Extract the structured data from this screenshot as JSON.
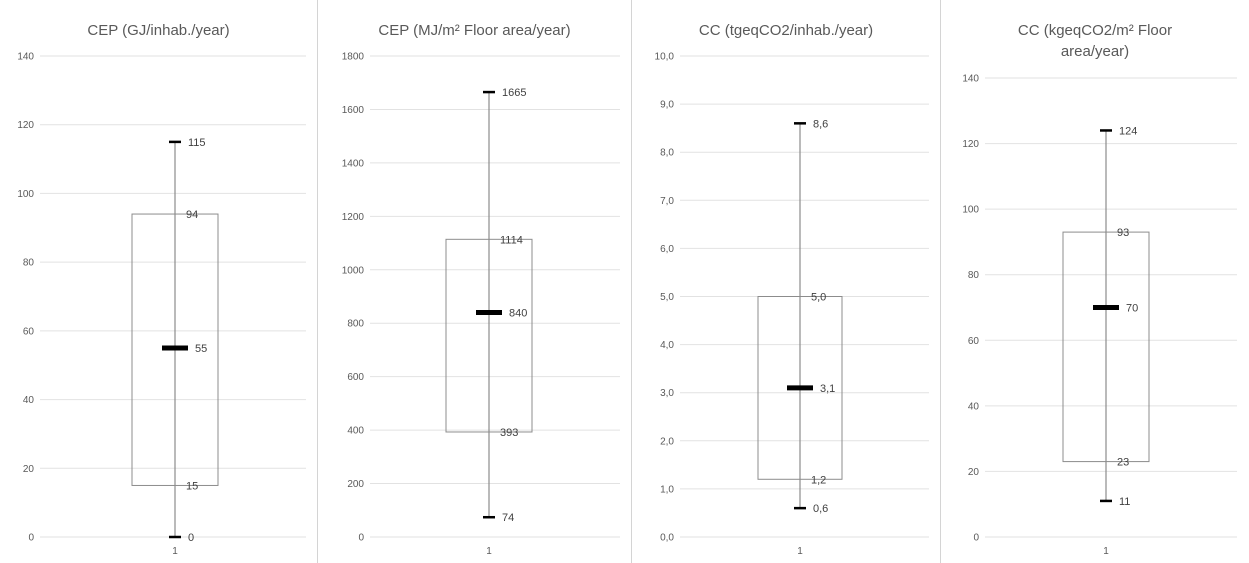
{
  "chart_data": [
    {
      "type": "boxplot",
      "title": "CEP  (GJ/inhab./year)",
      "categories": [
        "1"
      ],
      "ylim": [
        0,
        140
      ],
      "yticks": [
        "0",
        "20",
        "40",
        "60",
        "80",
        "100",
        "120",
        "140"
      ],
      "grid": true,
      "values": {
        "min": 0,
        "q1": 15,
        "median": 55,
        "q3": 94,
        "max": 115
      },
      "labels": {
        "min": "0",
        "q1": "15",
        "median": "55",
        "q3": "94",
        "max": "115"
      }
    },
    {
      "type": "boxplot",
      "title": "CEP  (MJ/m² Floor area/year)",
      "categories": [
        "1"
      ],
      "ylim": [
        0,
        1800
      ],
      "yticks": [
        "0",
        "200",
        "400",
        "600",
        "800",
        "1000",
        "1200",
        "1400",
        "1600",
        "1800"
      ],
      "grid": true,
      "values": {
        "min": 74,
        "q1": 393,
        "median": 840,
        "q3": 1114,
        "max": 1665
      },
      "labels": {
        "min": "74",
        "q1": "393",
        "median": "840",
        "q3": "1114",
        "max": "1665"
      }
    },
    {
      "type": "boxplot",
      "title": "CC (tgeqCO2/inhab./year)",
      "categories": [
        "1"
      ],
      "ylim": [
        0,
        10
      ],
      "yticks": [
        "0,0",
        "1,0",
        "2,0",
        "3,0",
        "4,0",
        "5,0",
        "6,0",
        "7,0",
        "8,0",
        "9,0",
        "10,0"
      ],
      "grid": true,
      "values": {
        "min": 0.6,
        "q1": 1.2,
        "median": 3.1,
        "q3": 5.0,
        "max": 8.6
      },
      "labels": {
        "min": "0,6",
        "q1": "1,2",
        "median": "3,1",
        "q3": "5,0",
        "max": "8,6"
      }
    },
    {
      "type": "boxplot",
      "title": "CC (kgeqCO2/m² Floor area/year)",
      "categories": [
        "1"
      ],
      "ylim": [
        0,
        140
      ],
      "yticks": [
        "0",
        "20",
        "40",
        "60",
        "80",
        "100",
        "120",
        "140"
      ],
      "grid": true,
      "values": {
        "min": 11,
        "q1": 23,
        "median": 70,
        "q3": 93,
        "max": 124
      },
      "labels": {
        "min": "11",
        "q1": "23",
        "median": "70",
        "q3": "93",
        "max": "124"
      }
    }
  ]
}
